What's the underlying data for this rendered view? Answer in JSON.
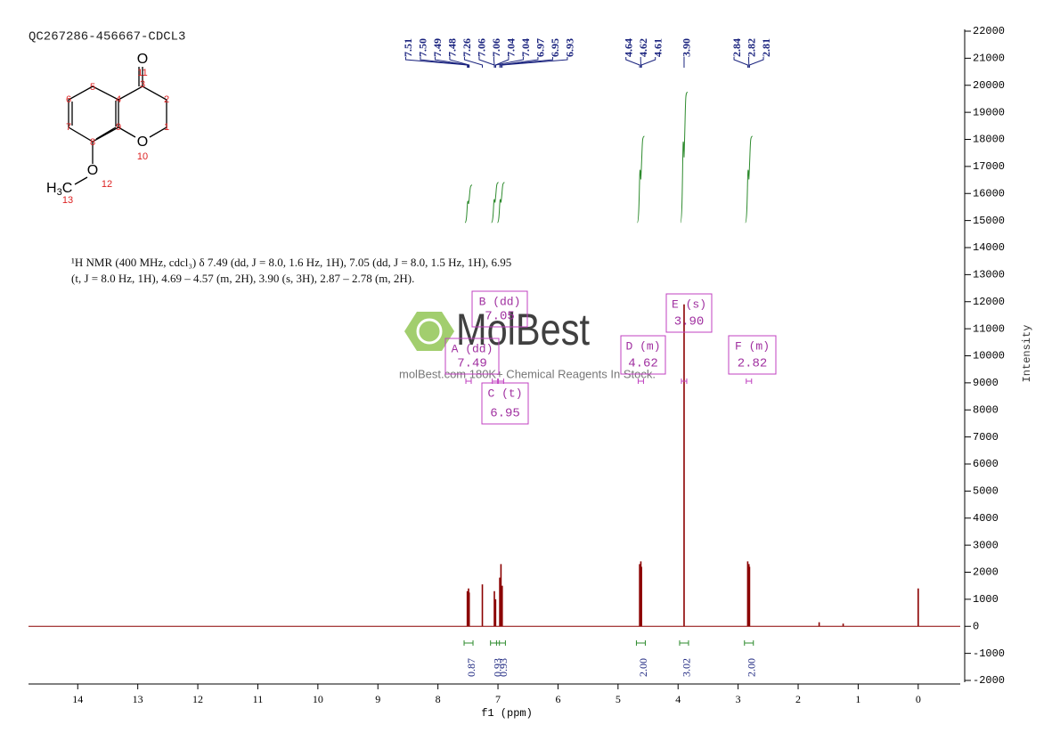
{
  "chart_data": {
    "type": "spectrum",
    "title": "QC267286-456667-CDCL3",
    "x_label": "f1 (ppm)",
    "y_label": "Intensity",
    "description": [
      "¹H NMR (400 MHz, cdcl₃) δ 7.49 (dd, J = 8.0, 1.6 Hz, 1H), 7.05 (dd, J = 8.0, 1.5 Hz, 1H), 6.95",
      "(t, J = 8.0 Hz, 1H), 4.69 – 4.57 (m, 2H), 3.90 (s, 3H), 2.87 – 2.78 (m, 2H)."
    ],
    "watermark": {
      "brand": "MolBest",
      "slogan": "molBest.com 180K+ Chemical Reagents In Stock."
    },
    "molecule": {
      "oxygens": [
        "O",
        "O",
        "O"
      ],
      "methyl": [
        "H",
        "3",
        "C"
      ],
      "numbers": [
        11,
        3,
        2,
        1,
        10,
        9,
        8,
        7,
        6,
        5,
        4,
        12,
        13
      ]
    },
    "xlim": [
      14.82,
      -0.7
    ],
    "xticks": [
      14,
      13,
      12,
      11,
      10,
      9,
      8,
      7,
      6,
      5,
      4,
      3,
      2,
      1,
      0
    ],
    "ylim": [
      -2000,
      22000
    ],
    "yticks": [
      22000,
      21000,
      20000,
      19000,
      18000,
      17000,
      16000,
      15000,
      14000,
      13000,
      12000,
      11000,
      10000,
      9000,
      8000,
      7000,
      6000,
      5000,
      4000,
      3000,
      2000,
      1000,
      0,
      -1000,
      -2000
    ],
    "color": "#8b0000",
    "x": [
      7.51,
      7.49,
      7.48,
      7.26,
      7.06,
      7.04,
      6.97,
      6.95,
      6.93,
      4.64,
      4.62,
      4.61,
      3.9,
      2.84,
      2.82,
      2.81,
      1.65,
      1.25,
      0.0
    ],
    "values": [
      1300,
      1400,
      1250,
      1550,
      1300,
      1000,
      1800,
      2300,
      1500,
      2300,
      2400,
      2200,
      11900,
      2400,
      2300,
      2200,
      150,
      100,
      1400
    ],
    "peak_label_groups": [
      [
        7.51,
        {
          "value": 7.5,
          "label": "7.50"
        },
        7.49,
        7.48,
        7.26,
        7.06,
        7.06,
        7.04,
        7.04,
        6.97,
        6.95,
        6.93
      ],
      [
        4.64,
        4.62,
        4.61
      ],
      [
        {
          "value": 3.9,
          "label": "3.90"
        }
      ],
      [
        2.84,
        2.82,
        2.81
      ]
    ],
    "integrals": {
      "x": [
        7.49,
        7.05,
        6.95,
        4.62,
        3.9,
        2.82
      ],
      "values": [
        0.87,
        0.93,
        0.93,
        {
          "value": 2,
          "label": "2.00"
        },
        3.02,
        {
          "value": 2,
          "label": "2.00"
        }
      ],
      "color": "#2e8b2e"
    },
    "multiplets": [
      {
        "name": "A (dd)",
        "shift": "7.49"
      },
      {
        "name": "B (dd)",
        "shift": "7.05"
      },
      {
        "name": "C (t)",
        "shift": "6.95"
      },
      {
        "name": "D (m)",
        "shift": "4.62"
      },
      {
        "name": "E (s)",
        "shift": "3.90"
      },
      {
        "name": "F (m)",
        "shift": "2.82"
      }
    ]
  }
}
